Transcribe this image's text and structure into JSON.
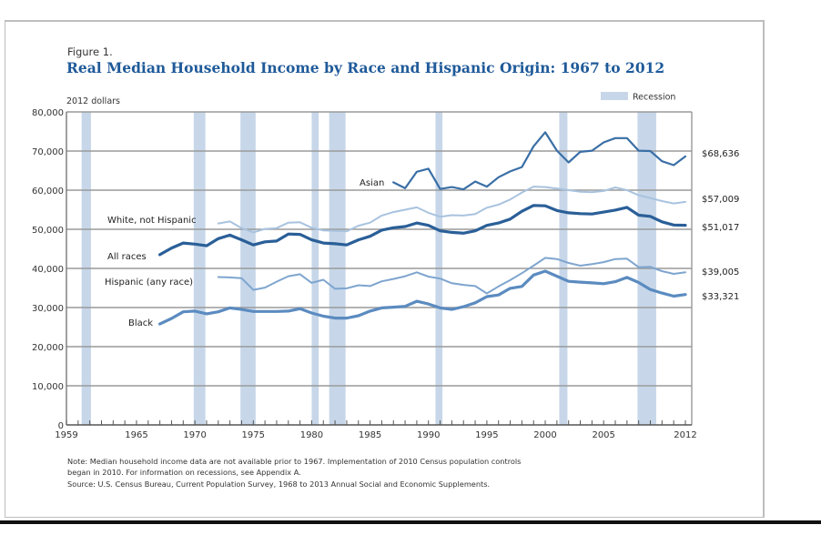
{
  "figure_label": "Figure 1.",
  "chart_data": {
    "type": "line",
    "title": "Real Median Household Income by Race and Hispanic Origin: 1967 to 2012",
    "ylabel": "2012 dollars",
    "xlabel": "",
    "xlim": [
      1959,
      2012
    ],
    "ylim": [
      0,
      80000
    ],
    "grid": true,
    "legend": {
      "position": "top-right",
      "entries": [
        "Recession"
      ]
    },
    "x_ticks": [
      "1959",
      "1965",
      "1970",
      "1975",
      "1980",
      "1985",
      "1990",
      "1995",
      "2000",
      "2005",
      "2012"
    ],
    "x_tick_values": [
      1959,
      1965,
      1970,
      1975,
      1980,
      1985,
      1990,
      1995,
      2000,
      2005,
      2012
    ],
    "y_ticks": [
      "0",
      "10,000",
      "20,000",
      "30,000",
      "40,000",
      "50,000",
      "60,000",
      "70,000",
      "80,000"
    ],
    "y_tick_values": [
      0,
      10000,
      20000,
      30000,
      40000,
      50000,
      60000,
      70000,
      80000
    ],
    "recessions": [
      [
        1960.3,
        1961.1
      ],
      [
        1969.9,
        1970.9
      ],
      [
        1973.9,
        1975.2
      ],
      [
        1980.0,
        1980.6
      ],
      [
        1981.5,
        1982.9
      ],
      [
        1990.6,
        1991.2
      ],
      [
        2001.2,
        2001.9
      ],
      [
        2007.9,
        2009.5
      ]
    ],
    "series": [
      {
        "name": "Asian",
        "end_label": "$68,636",
        "color": "#3a6fa6",
        "width": 2.2,
        "x": [
          1987,
          1988,
          1989,
          1990,
          1991,
          1992,
          1993,
          1994,
          1995,
          1996,
          1997,
          1998,
          1999,
          2000,
          2001,
          2002,
          2003,
          2004,
          2005,
          2006,
          2007,
          2008,
          2009,
          2010,
          2011,
          2012
        ],
        "values": [
          62000,
          60500,
          64700,
          65500,
          60300,
          60800,
          60200,
          62200,
          60900,
          63300,
          64800,
          65900,
          71200,
          74800,
          70100,
          67100,
          69800,
          70100,
          72200,
          73300,
          73300,
          70100,
          70000,
          67400,
          66400,
          68636
        ]
      },
      {
        "name": "White, not Hispanic",
        "end_label": "$57,009",
        "color": "#a9c3df",
        "width": 2,
        "x": [
          1972,
          1973,
          1974,
          1975,
          1976,
          1977,
          1978,
          1979,
          1980,
          1981,
          1982,
          1983,
          1984,
          1985,
          1986,
          1987,
          1988,
          1989,
          1990,
          1991,
          1992,
          1993,
          1994,
          1995,
          1996,
          1997,
          1998,
          1999,
          2000,
          2001,
          2002,
          2003,
          2004,
          2005,
          2006,
          2007,
          2008,
          2009,
          2010,
          2011,
          2012
        ],
        "values": [
          51500,
          52000,
          50300,
          49200,
          50100,
          50300,
          51700,
          51800,
          50400,
          49700,
          49600,
          49500,
          50900,
          51700,
          53500,
          54400,
          55000,
          55600,
          54200,
          53200,
          53600,
          53500,
          53900,
          55500,
          56300,
          57600,
          59400,
          60900,
          60800,
          60400,
          60000,
          59600,
          59500,
          59800,
          60700,
          60000,
          58700,
          58000,
          57200,
          56600,
          57009
        ]
      },
      {
        "name": "All races",
        "end_label": "$51,017",
        "color": "#2a5f98",
        "width": 3.2,
        "x": [
          1967,
          1968,
          1969,
          1970,
          1971,
          1972,
          1973,
          1974,
          1975,
          1976,
          1977,
          1978,
          1979,
          1980,
          1981,
          1982,
          1983,
          1984,
          1985,
          1986,
          1987,
          1988,
          1989,
          1990,
          1991,
          1992,
          1993,
          1994,
          1995,
          1996,
          1997,
          1998,
          1999,
          2000,
          2001,
          2002,
          2003,
          2004,
          2005,
          2006,
          2007,
          2008,
          2009,
          2010,
          2011,
          2012
        ],
        "values": [
          43500,
          45200,
          46500,
          46200,
          45800,
          47600,
          48500,
          47300,
          46000,
          46800,
          47000,
          48800,
          48700,
          47300,
          46500,
          46300,
          46000,
          47300,
          48200,
          49800,
          50400,
          50700,
          51600,
          51000,
          49600,
          49200,
          49000,
          49600,
          51000,
          51600,
          52600,
          54600,
          56100,
          56000,
          54800,
          54200,
          54000,
          53900,
          54400,
          54900,
          55600,
          53600,
          53300,
          51900,
          51100,
          51017
        ]
      },
      {
        "name": "Hispanic (any race)",
        "end_label": "$39,005",
        "color": "#7ea5cf",
        "width": 2,
        "x": [
          1972,
          1973,
          1974,
          1975,
          1976,
          1977,
          1978,
          1979,
          1980,
          1981,
          1982,
          1983,
          1984,
          1985,
          1986,
          1987,
          1988,
          1989,
          1990,
          1991,
          1992,
          1993,
          1994,
          1995,
          1996,
          1997,
          1998,
          1999,
          2000,
          2001,
          2002,
          2003,
          2004,
          2005,
          2006,
          2007,
          2008,
          2009,
          2010,
          2011,
          2012
        ],
        "values": [
          37800,
          37700,
          37500,
          34500,
          35100,
          36600,
          38000,
          38500,
          36300,
          37100,
          34800,
          34900,
          35700,
          35500,
          36700,
          37300,
          38000,
          39000,
          37900,
          37400,
          36200,
          35800,
          35500,
          33600,
          35400,
          37000,
          38800,
          40700,
          42700,
          42400,
          41400,
          40700,
          41100,
          41600,
          42400,
          42500,
          40300,
          40400,
          39300,
          38600,
          39005
        ]
      },
      {
        "name": "Black",
        "end_label": "$33,321",
        "color": "#5b8bc0",
        "width": 3.2,
        "x": [
          1967,
          1968,
          1969,
          1970,
          1971,
          1972,
          1973,
          1974,
          1975,
          1976,
          1977,
          1978,
          1979,
          1980,
          1981,
          1982,
          1983,
          1984,
          1985,
          1986,
          1987,
          1988,
          1989,
          1990,
          1991,
          1992,
          1993,
          1994,
          1995,
          1996,
          1997,
          1998,
          1999,
          2000,
          2001,
          2002,
          2003,
          2004,
          2005,
          2006,
          2007,
          2008,
          2009,
          2010,
          2011,
          2012
        ],
        "values": [
          25800,
          27200,
          28900,
          29100,
          28400,
          28900,
          29900,
          29500,
          29000,
          29000,
          29000,
          29100,
          29700,
          28600,
          27800,
          27300,
          27300,
          27900,
          29100,
          29900,
          30100,
          30300,
          31600,
          30900,
          29900,
          29500,
          30200,
          31200,
          32800,
          33200,
          34900,
          35400,
          38300,
          39300,
          38000,
          36700,
          36500,
          36300,
          36100,
          36600,
          37700,
          36400,
          34600,
          33700,
          32900,
          33321
        ]
      }
    ]
  },
  "notes": {
    "line1": "Note: Median household income data are not available prior to 1967. Implementation of 2010 Census population controls",
    "line2": "began in 2010. For information on recessions, see Appendix A.",
    "source": "Source: U.S. Census Bureau, Current Population Survey, 1968 to 2013 Annual Social and Economic Supplements."
  },
  "colors": {
    "title": "#1f5a99",
    "recession": "#c7d7e9",
    "grid": "#9a9a9a",
    "axis": "#777777"
  }
}
